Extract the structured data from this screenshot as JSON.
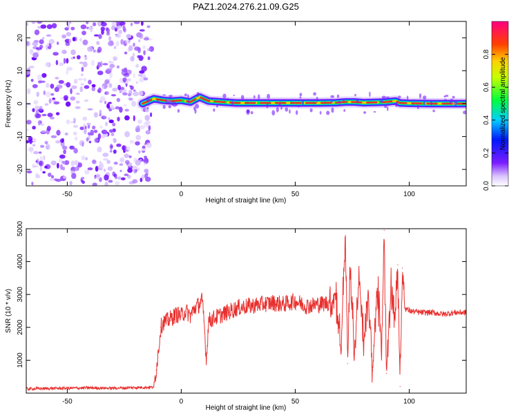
{
  "title": "PAZ1.2024.276.21.09.G25",
  "colors": {
    "snr_line": "#e8302e",
    "track_core": "#e8302e",
    "track_mid": "#00e04a",
    "track_edge": "#0050ff",
    "scatter": "#7a1cff"
  },
  "chart_data": [
    {
      "type": "heatmap",
      "xlabel": "Height of straight line (km)",
      "ylabel": "Frequency (Hz)",
      "xlim": [
        -68,
        125
      ],
      "ylim": [
        -25,
        25
      ],
      "xticks": [
        -50,
        0,
        50,
        100
      ],
      "yticks": [
        -20,
        -10,
        0,
        10,
        20
      ],
      "colorbar": {
        "label": "Normalized spectral amplitude",
        "ticks": [
          "0.0",
          "0.2",
          "0.4",
          "0.6",
          "0.8"
        ],
        "range": [
          0,
          1
        ],
        "colormap": "rainbow"
      },
      "noise_region_x": [
        -68,
        -13
      ],
      "track": {
        "x": [
          -17,
          -12,
          -8,
          -4,
          0,
          4,
          8,
          12,
          18,
          24,
          30,
          40,
          50,
          60,
          68,
          72,
          76,
          80,
          86,
          90,
          94,
          96,
          100,
          110,
          125
        ],
        "freq_hz": [
          0,
          1.5,
          1.0,
          0.8,
          1.0,
          0.5,
          2.0,
          0.8,
          0.5,
          0.2,
          0.2,
          0.2,
          0.2,
          0.2,
          0.3,
          0.5,
          0.5,
          0.3,
          0.4,
          0.5,
          0.8,
          0.2,
          0.1,
          0.0,
          0.0
        ]
      }
    },
    {
      "type": "line",
      "xlabel": "Height of straight line (km)",
      "ylabel": "SNR (10 * v/v)",
      "xlim": [
        -68,
        125
      ],
      "ylim": [
        0,
        5000
      ],
      "xticks": [
        -50,
        0,
        50,
        100
      ],
      "yticks": [
        1000,
        2000,
        3000,
        4000,
        5000
      ],
      "series": [
        {
          "x": [
            -68,
            -60,
            -50,
            -40,
            -30,
            -20,
            -12,
            -11,
            -10,
            -9,
            -8,
            -6,
            -4,
            -2,
            0,
            2,
            4,
            6,
            8,
            9,
            10,
            11,
            12,
            15,
            20,
            25,
            30,
            35,
            40,
            45,
            50,
            55,
            60,
            65,
            68,
            70,
            72,
            73,
            74,
            76,
            78,
            80,
            82,
            84,
            86,
            88,
            89,
            90,
            92,
            94,
            95,
            96,
            97,
            98,
            100,
            105,
            110,
            115,
            120,
            125
          ],
          "y": [
            130,
            140,
            150,
            160,
            150,
            170,
            180,
            700,
            1300,
            2000,
            2150,
            2200,
            2300,
            2400,
            2350,
            2500,
            2350,
            2600,
            2700,
            2850,
            2200,
            1000,
            2200,
            2300,
            2450,
            2600,
            2650,
            2700,
            2750,
            2700,
            2800,
            2650,
            2700,
            2750,
            3000,
            1300,
            4800,
            900,
            3800,
            1200,
            3500,
            1500,
            2900,
            700,
            3100,
            1600,
            4950,
            600,
            3400,
            2200,
            3900,
            200,
            3800,
            2600,
            2500,
            2450,
            2450,
            2400,
            2450,
            2450
          ]
        }
      ]
    }
  ]
}
